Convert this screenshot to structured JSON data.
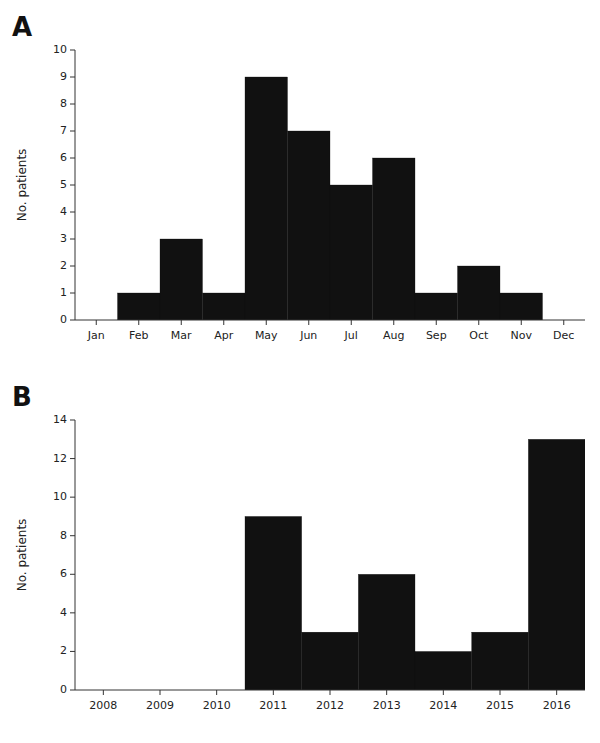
{
  "chart_data": [
    {
      "type": "bar",
      "title": "A",
      "categories": [
        "Jan",
        "Feb",
        "Mar",
        "Apr",
        "May",
        "Jun",
        "Jul",
        "Aug",
        "Sep",
        "Oct",
        "Nov",
        "Dec"
      ],
      "values": [
        0,
        1,
        3,
        1,
        9,
        7,
        5,
        6,
        1,
        2,
        1,
        0
      ],
      "ylabel": "No. patients",
      "ylim": [
        0,
        10
      ],
      "yticks": [
        0,
        1,
        2,
        3,
        4,
        5,
        6,
        7,
        8,
        9,
        10
      ],
      "color": "#111111",
      "grid": false
    },
    {
      "type": "bar",
      "title": "B",
      "categories": [
        "2008",
        "2009",
        "2010",
        "2011",
        "2012",
        "2013",
        "2014",
        "2015",
        "2016"
      ],
      "values": [
        0,
        0,
        0,
        9,
        3,
        6,
        2,
        3,
        13
      ],
      "ylabel": "No. patients",
      "ylim": [
        0,
        14
      ],
      "yticks": [
        0,
        2,
        4,
        6,
        8,
        10,
        12,
        14
      ],
      "color": "#111111",
      "grid": false
    }
  ]
}
